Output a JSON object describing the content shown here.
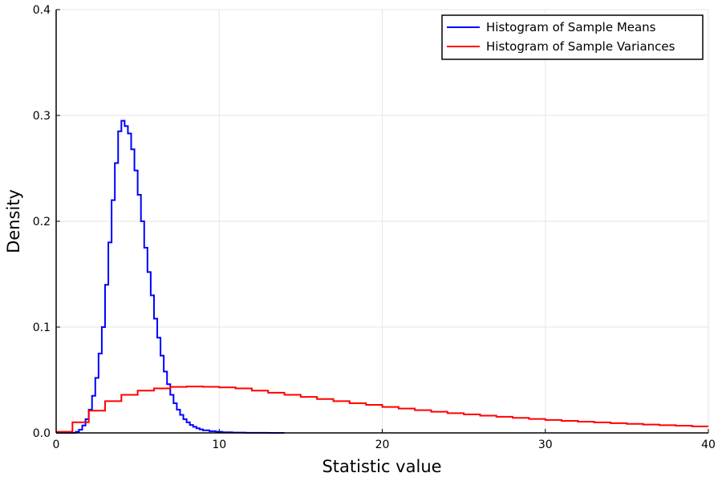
{
  "chart_data": {
    "type": "line",
    "xlabel": "Statistic value",
    "ylabel": "Density",
    "xlim": [
      0,
      40
    ],
    "ylim": [
      0,
      0.4
    ],
    "x_ticks": [
      0,
      10,
      20,
      30,
      40
    ],
    "y_ticks": [
      0.0,
      0.1,
      0.2,
      0.3,
      0.4
    ],
    "x_tick_labels": [
      "0",
      "10",
      "20",
      "30",
      "40"
    ],
    "y_tick_labels": [
      "0.0",
      "0.1",
      "0.2",
      "0.3",
      "0.4"
    ],
    "grid": true,
    "legend_position": "top-right",
    "step_style": "histogram-step",
    "series": [
      {
        "name": "Histogram of Sample Means",
        "color": "#0000ff",
        "points": [
          [
            0,
            0
          ],
          [
            1.0,
            0.0
          ],
          [
            1.2,
            0.001
          ],
          [
            1.4,
            0.003
          ],
          [
            1.6,
            0.007
          ],
          [
            1.8,
            0.013
          ],
          [
            2.0,
            0.022
          ],
          [
            2.2,
            0.035
          ],
          [
            2.4,
            0.052
          ],
          [
            2.6,
            0.075
          ],
          [
            2.8,
            0.1
          ],
          [
            3.0,
            0.14
          ],
          [
            3.2,
            0.18
          ],
          [
            3.4,
            0.22
          ],
          [
            3.6,
            0.255
          ],
          [
            3.8,
            0.285
          ],
          [
            4.0,
            0.295
          ],
          [
            4.2,
            0.29
          ],
          [
            4.4,
            0.283
          ],
          [
            4.6,
            0.268
          ],
          [
            4.8,
            0.248
          ],
          [
            5.0,
            0.225
          ],
          [
            5.2,
            0.2
          ],
          [
            5.4,
            0.175
          ],
          [
            5.6,
            0.152
          ],
          [
            5.8,
            0.13
          ],
          [
            6.0,
            0.108
          ],
          [
            6.2,
            0.09
          ],
          [
            6.4,
            0.073
          ],
          [
            6.6,
            0.058
          ],
          [
            6.8,
            0.046
          ],
          [
            7.0,
            0.036
          ],
          [
            7.2,
            0.028
          ],
          [
            7.4,
            0.022
          ],
          [
            7.6,
            0.017
          ],
          [
            7.8,
            0.013
          ],
          [
            8.0,
            0.01
          ],
          [
            8.2,
            0.0075
          ],
          [
            8.4,
            0.0058
          ],
          [
            8.6,
            0.0044
          ],
          [
            8.8,
            0.0033
          ],
          [
            9.0,
            0.0025
          ],
          [
            9.4,
            0.0016
          ],
          [
            9.8,
            0.001
          ],
          [
            10.2,
            0.0006
          ],
          [
            10.8,
            0.0003
          ],
          [
            11.6,
            0.0001
          ],
          [
            13.0,
            0.0
          ],
          [
            14.0,
            0.0
          ]
        ]
      },
      {
        "name": "Histogram of Sample Variances",
        "color": "#ff0000",
        "points": [
          [
            0,
            0.001
          ],
          [
            1,
            0.01
          ],
          [
            2,
            0.021
          ],
          [
            3,
            0.03
          ],
          [
            4,
            0.036
          ],
          [
            5,
            0.04
          ],
          [
            6,
            0.042
          ],
          [
            7,
            0.0435
          ],
          [
            8,
            0.0438
          ],
          [
            9,
            0.0436
          ],
          [
            10,
            0.043
          ],
          [
            11,
            0.042
          ],
          [
            12,
            0.04
          ],
          [
            13,
            0.038
          ],
          [
            14,
            0.036
          ],
          [
            15,
            0.034
          ],
          [
            16,
            0.032
          ],
          [
            17,
            0.03
          ],
          [
            18,
            0.028
          ],
          [
            19,
            0.0265
          ],
          [
            20,
            0.0245
          ],
          [
            21,
            0.023
          ],
          [
            22,
            0.0215
          ],
          [
            23,
            0.02
          ],
          [
            24,
            0.0187
          ],
          [
            25,
            0.0175
          ],
          [
            26,
            0.0163
          ],
          [
            27,
            0.0152
          ],
          [
            28,
            0.0142
          ],
          [
            29,
            0.0132
          ],
          [
            30,
            0.0122
          ],
          [
            31,
            0.0114
          ],
          [
            32,
            0.0106
          ],
          [
            33,
            0.0099
          ],
          [
            34,
            0.0092
          ],
          [
            35,
            0.0085
          ],
          [
            36,
            0.0079
          ],
          [
            37,
            0.0073
          ],
          [
            38,
            0.0068
          ],
          [
            39,
            0.0062
          ],
          [
            40,
            0.0062
          ]
        ]
      }
    ]
  }
}
